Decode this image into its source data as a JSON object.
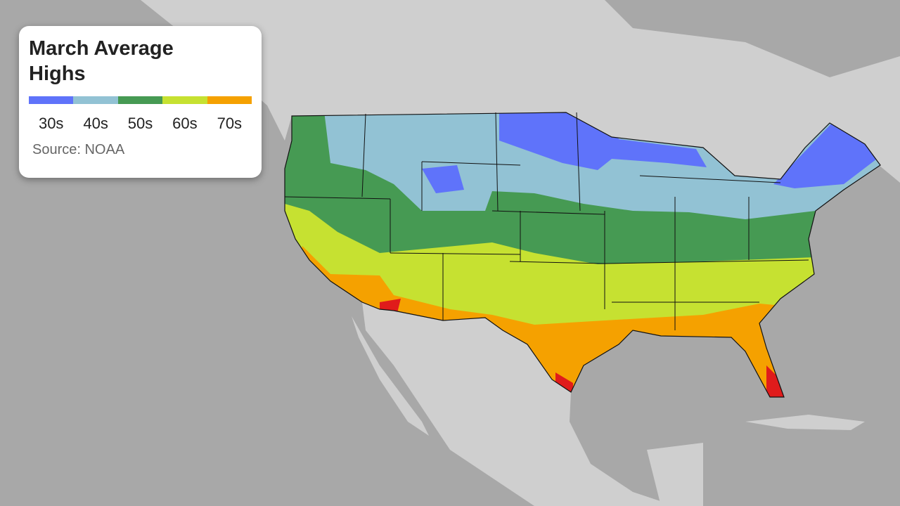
{
  "legend": {
    "title": "March Average Highs",
    "source": "Source: NOAA",
    "bins": [
      {
        "label": "30s",
        "color": "#5f73fa"
      },
      {
        "label": "40s",
        "color": "#92c2d4"
      },
      {
        "label": "50s",
        "color": "#469a53"
      },
      {
        "label": "60s",
        "color": "#c6e131"
      },
      {
        "label": "70s",
        "color": "#f5a100"
      }
    ],
    "extreme_color": "#e01b1b"
  },
  "colors": {
    "sea": "#a8a8a8",
    "land": "#cfcfcf"
  }
}
